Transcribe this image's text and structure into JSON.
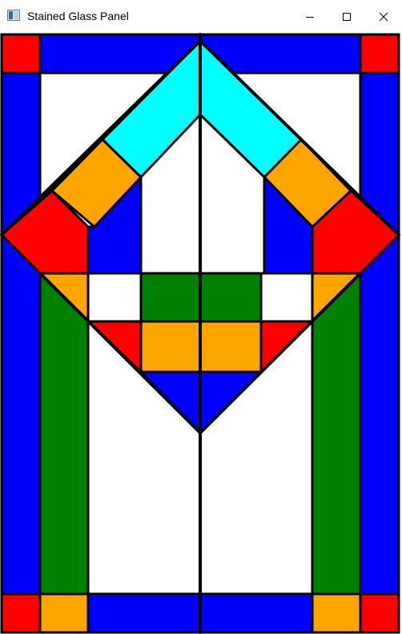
{
  "window": {
    "title": "Stained Glass Panel",
    "controls": {
      "minimize_icon": "minimize-icon",
      "maximize_icon": "maximize-icon",
      "close_icon": "close-icon"
    }
  },
  "colors": {
    "red": "#ff0000",
    "blue": "#0000ff",
    "cyan": "#00ffff",
    "orange": "#ffa500",
    "green": "#008000",
    "white": "#ffffff",
    "lead": "#000000"
  }
}
